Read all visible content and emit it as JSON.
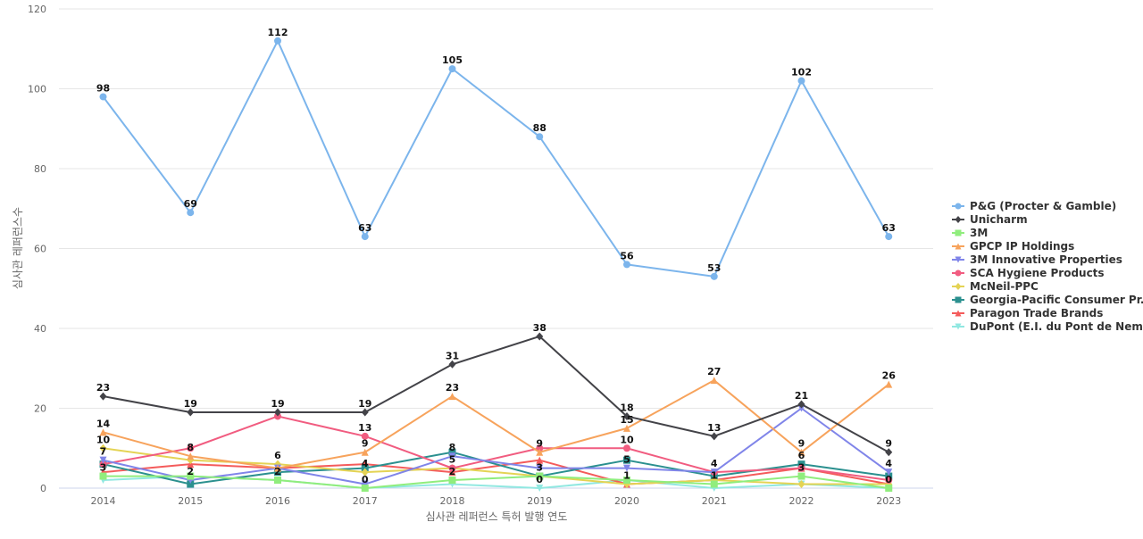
{
  "chart_data": {
    "type": "line",
    "xlabel": "심사관 레퍼런스 특허 발행 연도",
    "ylabel": "심사관 레퍼런스수",
    "ylim": [
      0,
      120
    ],
    "yticks": [
      0,
      20,
      40,
      60,
      80,
      100,
      120
    ],
    "grid": true,
    "legend_position": "right",
    "categories": [
      "2014",
      "2015",
      "2016",
      "2017",
      "2018",
      "2019",
      "2020",
      "2021",
      "2022",
      "2023"
    ],
    "series": [
      {
        "name": "P&G (Procter & Gamble)",
        "color": "#7cb5ec",
        "marker": "circle",
        "values": [
          98,
          69,
          112,
          63,
          105,
          88,
          56,
          53,
          102,
          63
        ]
      },
      {
        "name": "Unicharm",
        "color": "#434348",
        "marker": "diamond",
        "values": [
          23,
          19,
          19,
          19,
          31,
          38,
          18,
          13,
          21,
          9
        ]
      },
      {
        "name": "3M",
        "color": "#90ed7d",
        "marker": "square",
        "values": [
          3,
          3,
          2,
          0,
          2,
          3,
          2,
          1,
          3,
          0
        ]
      },
      {
        "name": "GPCP IP Holdings",
        "color": "#f7a35c",
        "marker": "triangle",
        "values": [
          14,
          8,
          5,
          9,
          23,
          9,
          15,
          27,
          9,
          26
        ]
      },
      {
        "name": "3M Innovative Properties",
        "color": "#8085e9",
        "marker": "triangle-down",
        "values": [
          7,
          2,
          5,
          1,
          8,
          5,
          5,
          4,
          20,
          4
        ]
      },
      {
        "name": "SCA Hygiene Products",
        "color": "#f15c80",
        "marker": "circle",
        "values": [
          6,
          10,
          18,
          13,
          5,
          10,
          10,
          4,
          5,
          2
        ]
      },
      {
        "name": "McNeil-PPC",
        "color": "#e4d354",
        "marker": "diamond",
        "values": [
          10,
          7,
          6,
          4,
          5,
          3,
          1,
          2,
          1,
          1
        ]
      },
      {
        "name": "Georgia-Pacific Consumer Pr...",
        "color": "#2b908f",
        "marker": "square",
        "values": [
          6,
          1,
          4,
          5,
          9,
          3,
          7,
          3,
          6,
          3
        ]
      },
      {
        "name": "Paragon Trade Brands",
        "color": "#f45b5b",
        "marker": "triangle",
        "values": [
          4,
          6,
          5,
          6,
          4,
          7,
          1,
          2,
          5,
          1
        ]
      },
      {
        "name": "DuPont (E.I. du Pont de Nem...",
        "color": "#91e8e1",
        "marker": "triangle-down",
        "values": [
          2,
          3,
          2,
          0,
          1,
          0,
          2,
          0,
          1,
          0
        ]
      }
    ],
    "data_labels": [
      {
        "cat": "2014",
        "text": "98",
        "y": 98
      },
      {
        "cat": "2015",
        "text": "69",
        "y": 69
      },
      {
        "cat": "2016",
        "text": "112",
        "y": 112
      },
      {
        "cat": "2017",
        "text": "63",
        "y": 63
      },
      {
        "cat": "2018",
        "text": "105",
        "y": 105
      },
      {
        "cat": "2019",
        "text": "88",
        "y": 88
      },
      {
        "cat": "2020",
        "text": "56",
        "y": 56
      },
      {
        "cat": "2021",
        "text": "53",
        "y": 53
      },
      {
        "cat": "2022",
        "text": "102",
        "y": 102
      },
      {
        "cat": "2023",
        "text": "63",
        "y": 63
      },
      {
        "cat": "2014",
        "text": "23",
        "y": 23
      },
      {
        "cat": "2015",
        "text": "19",
        "y": 19
      },
      {
        "cat": "2016",
        "text": "19",
        "y": 19
      },
      {
        "cat": "2017",
        "text": "19",
        "y": 19
      },
      {
        "cat": "2018",
        "text": "31",
        "y": 31
      },
      {
        "cat": "2019",
        "text": "38",
        "y": 38
      },
      {
        "cat": "2020",
        "text": "18",
        "y": 18
      },
      {
        "cat": "2021",
        "text": "13",
        "y": 13
      },
      {
        "cat": "2022",
        "text": "21",
        "y": 21
      },
      {
        "cat": "2023",
        "text": "9",
        "y": 9
      },
      {
        "cat": "2014",
        "text": "14",
        "y": 14
      },
      {
        "cat": "2018",
        "text": "23",
        "y": 23
      },
      {
        "cat": "2020",
        "text": "15",
        "y": 15
      },
      {
        "cat": "2021",
        "text": "27",
        "y": 27
      },
      {
        "cat": "2023",
        "text": "26",
        "y": 26
      },
      {
        "cat": "2014",
        "text": "10",
        "y": 10
      },
      {
        "cat": "2015",
        "text": "8",
        "y": 8
      },
      {
        "cat": "2016",
        "text": "6",
        "y": 6
      },
      {
        "cat": "2017",
        "text": "13",
        "y": 13
      },
      {
        "cat": "2017",
        "text": "9",
        "y": 9
      },
      {
        "cat": "2018",
        "text": "8",
        "y": 8
      },
      {
        "cat": "2019",
        "text": "9",
        "y": 9
      },
      {
        "cat": "2020",
        "text": "10",
        "y": 10
      },
      {
        "cat": "2022",
        "text": "9",
        "y": 9
      },
      {
        "cat": "2014",
        "text": "7",
        "y": 7
      },
      {
        "cat": "2018",
        "text": "5",
        "y": 5
      },
      {
        "cat": "2020",
        "text": "5",
        "y": 5
      },
      {
        "cat": "2021",
        "text": "4",
        "y": 4
      },
      {
        "cat": "2022",
        "text": "6",
        "y": 6
      },
      {
        "cat": "2023",
        "text": "4",
        "y": 4
      },
      {
        "cat": "2017",
        "text": "4",
        "y": 4
      },
      {
        "cat": "2019",
        "text": "3",
        "y": 3
      },
      {
        "cat": "2022",
        "text": "3",
        "y": 3
      },
      {
        "cat": "2014",
        "text": "3",
        "y": 3
      },
      {
        "cat": "2015",
        "text": "2",
        "y": 2
      },
      {
        "cat": "2016",
        "text": "2",
        "y": 2
      },
      {
        "cat": "2018",
        "text": "2",
        "y": 2
      },
      {
        "cat": "2020",
        "text": "1",
        "y": 1
      },
      {
        "cat": "2021",
        "text": "1",
        "y": 1
      },
      {
        "cat": "2017",
        "text": "0",
        "y": 0
      },
      {
        "cat": "2019",
        "text": "0",
        "y": 0
      },
      {
        "cat": "2023",
        "text": "0",
        "y": 0
      }
    ]
  }
}
